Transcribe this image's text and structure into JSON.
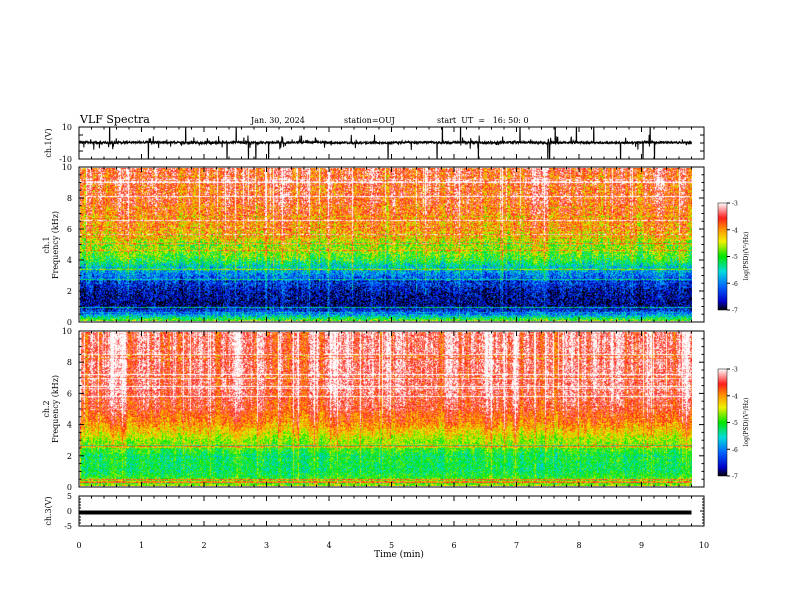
{
  "header": {
    "title": "VLF Spectra",
    "date": "Jan. 30, 2024",
    "station": "station=OUJ",
    "start": "start  UT  =   16: 50: 0"
  },
  "chart_data": [
    {
      "type": "line",
      "name": "ch1-waveform",
      "ylabel": "ch.1(V)",
      "ylim": [
        -10,
        10
      ],
      "y_ticks": [
        "10",
        "-10"
      ],
      "xlim": [
        0,
        10
      ],
      "x": [
        0,
        0.5,
        1,
        1.5,
        2,
        2.5,
        3,
        3.5,
        4,
        4.5,
        5,
        5.5,
        6,
        6.5,
        7,
        7.5,
        8,
        8.5,
        9,
        9.5,
        9.8
      ],
      "values": [
        0.5,
        0.2,
        0.4,
        0.3,
        0.1,
        0.4,
        0.2,
        0.5,
        0.3,
        0.1,
        0.2,
        0.4,
        0.3,
        0.2,
        0.5,
        0.1,
        0.3,
        0.2,
        0.4,
        0.3,
        0.2
      ]
    },
    {
      "type": "heatmap",
      "name": "ch1-spectrogram",
      "ylabel_top": "ch.1",
      "ylabel": "Frequency (kHz)",
      "ylim": [
        0,
        10
      ],
      "y_ticks": [
        "0",
        "2",
        "4",
        "6",
        "8",
        "10"
      ],
      "xlim": [
        0,
        9.85
      ],
      "colorbar": {
        "range": [
          -7,
          -3
        ],
        "ticks": [
          "-3",
          "-4",
          "-5",
          "-6",
          "-7"
        ],
        "label": "log(PSD)(V²/Hz)"
      },
      "profile_freq_khz": [
        0,
        0.5,
        1,
        2,
        3,
        3.5,
        4,
        5,
        6,
        7,
        8,
        10
      ],
      "profile_log_psd": [
        -4.8,
        -6.2,
        -6.8,
        -6.6,
        -6.0,
        -5.6,
        -5.0,
        -4.5,
        -4.1,
        -3.8,
        -3.6,
        -3.5
      ]
    },
    {
      "type": "heatmap",
      "name": "ch2-spectrogram",
      "ylabel_top": "ch.2",
      "ylabel": "Frequency (kHz)",
      "ylim": [
        0,
        10
      ],
      "y_ticks": [
        "0",
        "2",
        "4",
        "6",
        "8",
        "10"
      ],
      "xlim": [
        0,
        9.85
      ],
      "colorbar": {
        "range": [
          -7,
          -3
        ],
        "ticks": [
          "-3",
          "-4",
          "-5",
          "-6",
          "-7"
        ],
        "label": "log(PSD)(V²/Hz)"
      },
      "profile_freq_khz": [
        0,
        0.5,
        1,
        2,
        2.5,
        3,
        3.5,
        4,
        5,
        6,
        8,
        10
      ],
      "profile_log_psd": [
        -4.6,
        -5.0,
        -5.2,
        -5.1,
        -4.9,
        -4.6,
        -4.3,
        -4.0,
        -3.6,
        -3.4,
        -3.3,
        -3.3
      ]
    },
    {
      "type": "line",
      "name": "ch3-waveform",
      "ylabel": "ch.3(V)",
      "ylim": [
        -5,
        5
      ],
      "y_ticks": [
        "5",
        "0",
        "-5"
      ],
      "xlim": [
        0,
        10
      ],
      "x": [
        0,
        4.8,
        4.85,
        9.8
      ],
      "values": [
        -0.5,
        -0.5,
        -0.3,
        -0.5
      ]
    }
  ],
  "xaxis": {
    "label": "Time (min)",
    "ticks": [
      "0",
      "1",
      "2",
      "3",
      "4",
      "5",
      "6",
      "7",
      "8",
      "9",
      "10"
    ]
  }
}
